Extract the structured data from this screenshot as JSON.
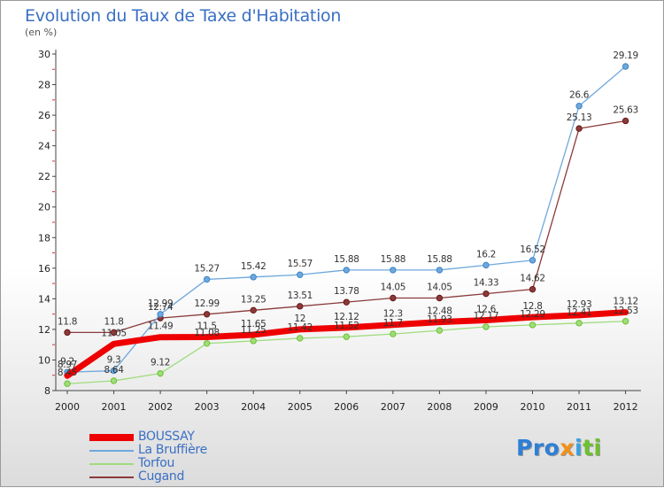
{
  "title": "Evolution du Taux de Taxe d'Habitation",
  "subtitle": "(en %)",
  "logo": {
    "letters": [
      {
        "ch": "P",
        "color": "#2e7fd6"
      },
      {
        "ch": "r",
        "color": "#2e7fd6"
      },
      {
        "ch": "o",
        "color": "#2e7fd6"
      },
      {
        "ch": "x",
        "color": "#f29018"
      },
      {
        "ch": "i",
        "color": "#3aa0e0"
      },
      {
        "ch": "t",
        "color": "#6cc12c"
      },
      {
        "ch": "i",
        "color": "#6cc12c"
      }
    ]
  },
  "chart_data": {
    "type": "line",
    "categories": [
      "2000",
      "2001",
      "2002",
      "2003",
      "2004",
      "2005",
      "2006",
      "2007",
      "2008",
      "2009",
      "2010",
      "2011",
      "2012"
    ],
    "ylim": [
      8,
      30
    ],
    "yticks": [
      8,
      10,
      12,
      14,
      16,
      18,
      20,
      22,
      24,
      26,
      28,
      30
    ],
    "grid": false,
    "legend_position": "bottom-left",
    "series": [
      {
        "name": "BOUSSAY",
        "color": "#ee0000",
        "width": 7,
        "marker": 0,
        "values": [
          8.97,
          11.05,
          11.49,
          11.5,
          11.65,
          12,
          12.12,
          12.3,
          12.48,
          12.6,
          12.8,
          12.93,
          13.12
        ],
        "labels": [
          "8.97",
          "11.05",
          "11.49",
          "11.5",
          "11.65",
          "12",
          "12.12",
          "12.3",
          "12.48",
          "12.6",
          "12.8",
          "12.93",
          "13.12"
        ]
      },
      {
        "name": "La Bruffière",
        "color": "#6fa8dc",
        "width": 1.3,
        "marker": 3.2,
        "markerColor": "#3d85c6",
        "values": [
          9.2,
          9.3,
          12.99,
          15.27,
          15.42,
          15.57,
          15.88,
          15.88,
          15.88,
          16.2,
          16.52,
          26.6,
          29.19
        ],
        "labels": [
          "9.2",
          "9.3",
          "12.99",
          "15.27",
          "15.42",
          "15.57",
          "15.88",
          "15.88",
          "15.88",
          "16.2",
          "16.52",
          "26.6",
          "29.19"
        ]
      },
      {
        "name": "Torfou",
        "color": "#9fdc7e",
        "width": 1.3,
        "marker": 3.2,
        "markerColor": "#6cc12c",
        "values": [
          8.45,
          8.64,
          9.12,
          11.08,
          11.25,
          11.42,
          11.52,
          11.7,
          11.93,
          12.17,
          12.29,
          12.41,
          12.53
        ],
        "labels": [
          "8.45",
          "8.64",
          "9.12",
          "11.08",
          "11.25",
          "11.42",
          "11.52",
          "11.7",
          "11.93",
          "12.17",
          "12.29",
          "12.41",
          "12.53"
        ]
      },
      {
        "name": "Cugand",
        "color": "#8b3a3a",
        "width": 1.3,
        "marker": 3.2,
        "markerColor": "#6b1818",
        "values": [
          11.8,
          11.8,
          12.74,
          12.99,
          13.25,
          13.51,
          13.78,
          14.05,
          14.05,
          14.33,
          14.62,
          25.13,
          25.63
        ],
        "labels": [
          "11.8",
          "11.8",
          "12.74",
          "12.99",
          "13.25",
          "13.51",
          "13.78",
          "14.05",
          "14.05",
          "14.33",
          "14.62",
          "25.13",
          "25.63"
        ]
      }
    ]
  }
}
